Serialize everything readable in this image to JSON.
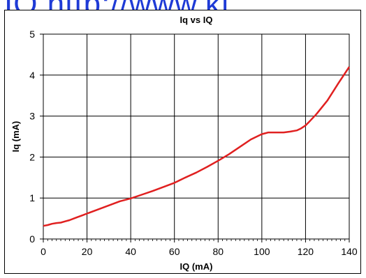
{
  "watermark_text": "IO   http://www.kt",
  "chart_data": {
    "type": "line",
    "title": "Iq vs IQ",
    "xlabel": "IQ (mA)",
    "ylabel": "Iq (mA)",
    "xlim": [
      0,
      140
    ],
    "ylim": [
      0,
      5
    ],
    "x_ticks": [
      0,
      20,
      40,
      60,
      80,
      100,
      120,
      140
    ],
    "y_ticks": [
      0,
      1,
      2,
      3,
      4,
      5
    ],
    "grid": true,
    "legend": "none",
    "series": [
      {
        "color": "#e02020",
        "x": [
          0,
          2,
          4,
          6,
          8,
          10,
          12,
          14,
          16,
          18,
          20,
          25,
          30,
          35,
          40,
          45,
          50,
          55,
          60,
          65,
          70,
          75,
          80,
          85,
          90,
          95,
          100,
          103,
          106,
          110,
          113,
          116,
          118,
          120,
          122,
          125,
          130,
          135,
          140
        ],
        "y": [
          0.32,
          0.34,
          0.37,
          0.39,
          0.4,
          0.43,
          0.46,
          0.5,
          0.54,
          0.58,
          0.62,
          0.72,
          0.82,
          0.92,
          0.99,
          1.08,
          1.17,
          1.27,
          1.37,
          1.5,
          1.62,
          1.76,
          1.91,
          2.07,
          2.25,
          2.43,
          2.56,
          2.6,
          2.6,
          2.6,
          2.62,
          2.65,
          2.7,
          2.77,
          2.88,
          3.05,
          3.38,
          3.8,
          4.2
        ]
      }
    ]
  }
}
